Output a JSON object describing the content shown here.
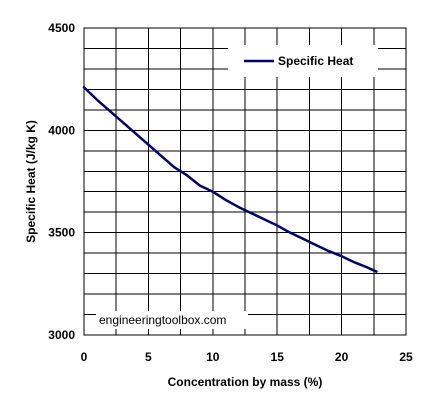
{
  "chart_data": {
    "type": "line",
    "xlabel": "Concentration by mass (%)",
    "ylabel": "Specific Heat (J/kg K)",
    "xlim": [
      0,
      25
    ],
    "ylim": [
      3000,
      4500
    ],
    "x_ticks": [
      0,
      5,
      10,
      15,
      20,
      25
    ],
    "y_ticks": [
      3000,
      3500,
      4000,
      4500
    ],
    "x_tick_labels": [
      "0",
      "5",
      "10",
      "15",
      "20",
      "25"
    ],
    "y_tick_labels": [
      "3000",
      "3500",
      "4000",
      "4500"
    ],
    "x_minor_step": 2.5,
    "y_minor_step": 100,
    "grid": true,
    "legend_position": "top-right",
    "series": [
      {
        "name": "Specific Heat",
        "color": "#000066",
        "x": [
          0,
          1,
          2,
          3,
          4,
          5,
          6,
          7,
          8,
          9,
          10,
          11,
          12,
          13,
          14,
          15,
          16,
          17,
          18,
          19,
          20,
          21,
          22,
          22.7
        ],
        "y": [
          4210,
          4150,
          4095,
          4040,
          3985,
          3930,
          3875,
          3820,
          3780,
          3730,
          3700,
          3660,
          3625,
          3595,
          3565,
          3535,
          3500,
          3470,
          3440,
          3410,
          3385,
          3355,
          3330,
          3310
        ]
      }
    ]
  },
  "watermark": "engineeringtoolbox.com"
}
